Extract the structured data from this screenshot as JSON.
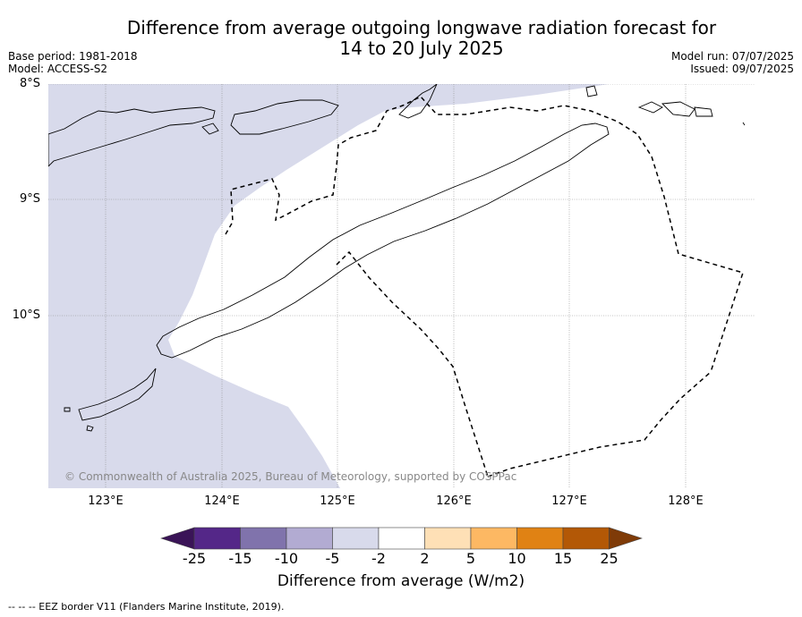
{
  "title_line1": "Difference from average outgoing longwave radiation forecast for",
  "title_line2": "14 to 20 July 2025",
  "base_period": "Base period: 1981-2018",
  "model": "Model: ACCESS-S2",
  "model_run": "Model run: 07/07/2025",
  "issued": "Issued: 09/07/2025",
  "lat_labels": [
    "8°S",
    "9°S",
    "10°S"
  ],
  "lon_labels": [
    "123°E",
    "124°E",
    "125°E",
    "126°E",
    "127°E",
    "128°E"
  ],
  "copyright": "© Commonwealth of Australia 2025, Bureau of Meteorology, supported by COSPPac",
  "colorbar": {
    "ticks": [
      "-25",
      "-15",
      "-10",
      "-5",
      "-2",
      "2",
      "5",
      "10",
      "15",
      "25"
    ],
    "colors": [
      "#3a1457",
      "#542788",
      "#8073ac",
      "#b2abd2",
      "#d8daeb",
      "#ffffff",
      "#fee0b6",
      "#fdb863",
      "#e08214",
      "#b35806",
      "#7f3b08"
    ],
    "label": "Difference from average (W/m2)"
  },
  "footer": "--  --  -- EEZ border V11 (Flanders Marine Institute, 2019).",
  "colors": {
    "negative_fill": "#d8daeb",
    "grid": "#888888"
  }
}
